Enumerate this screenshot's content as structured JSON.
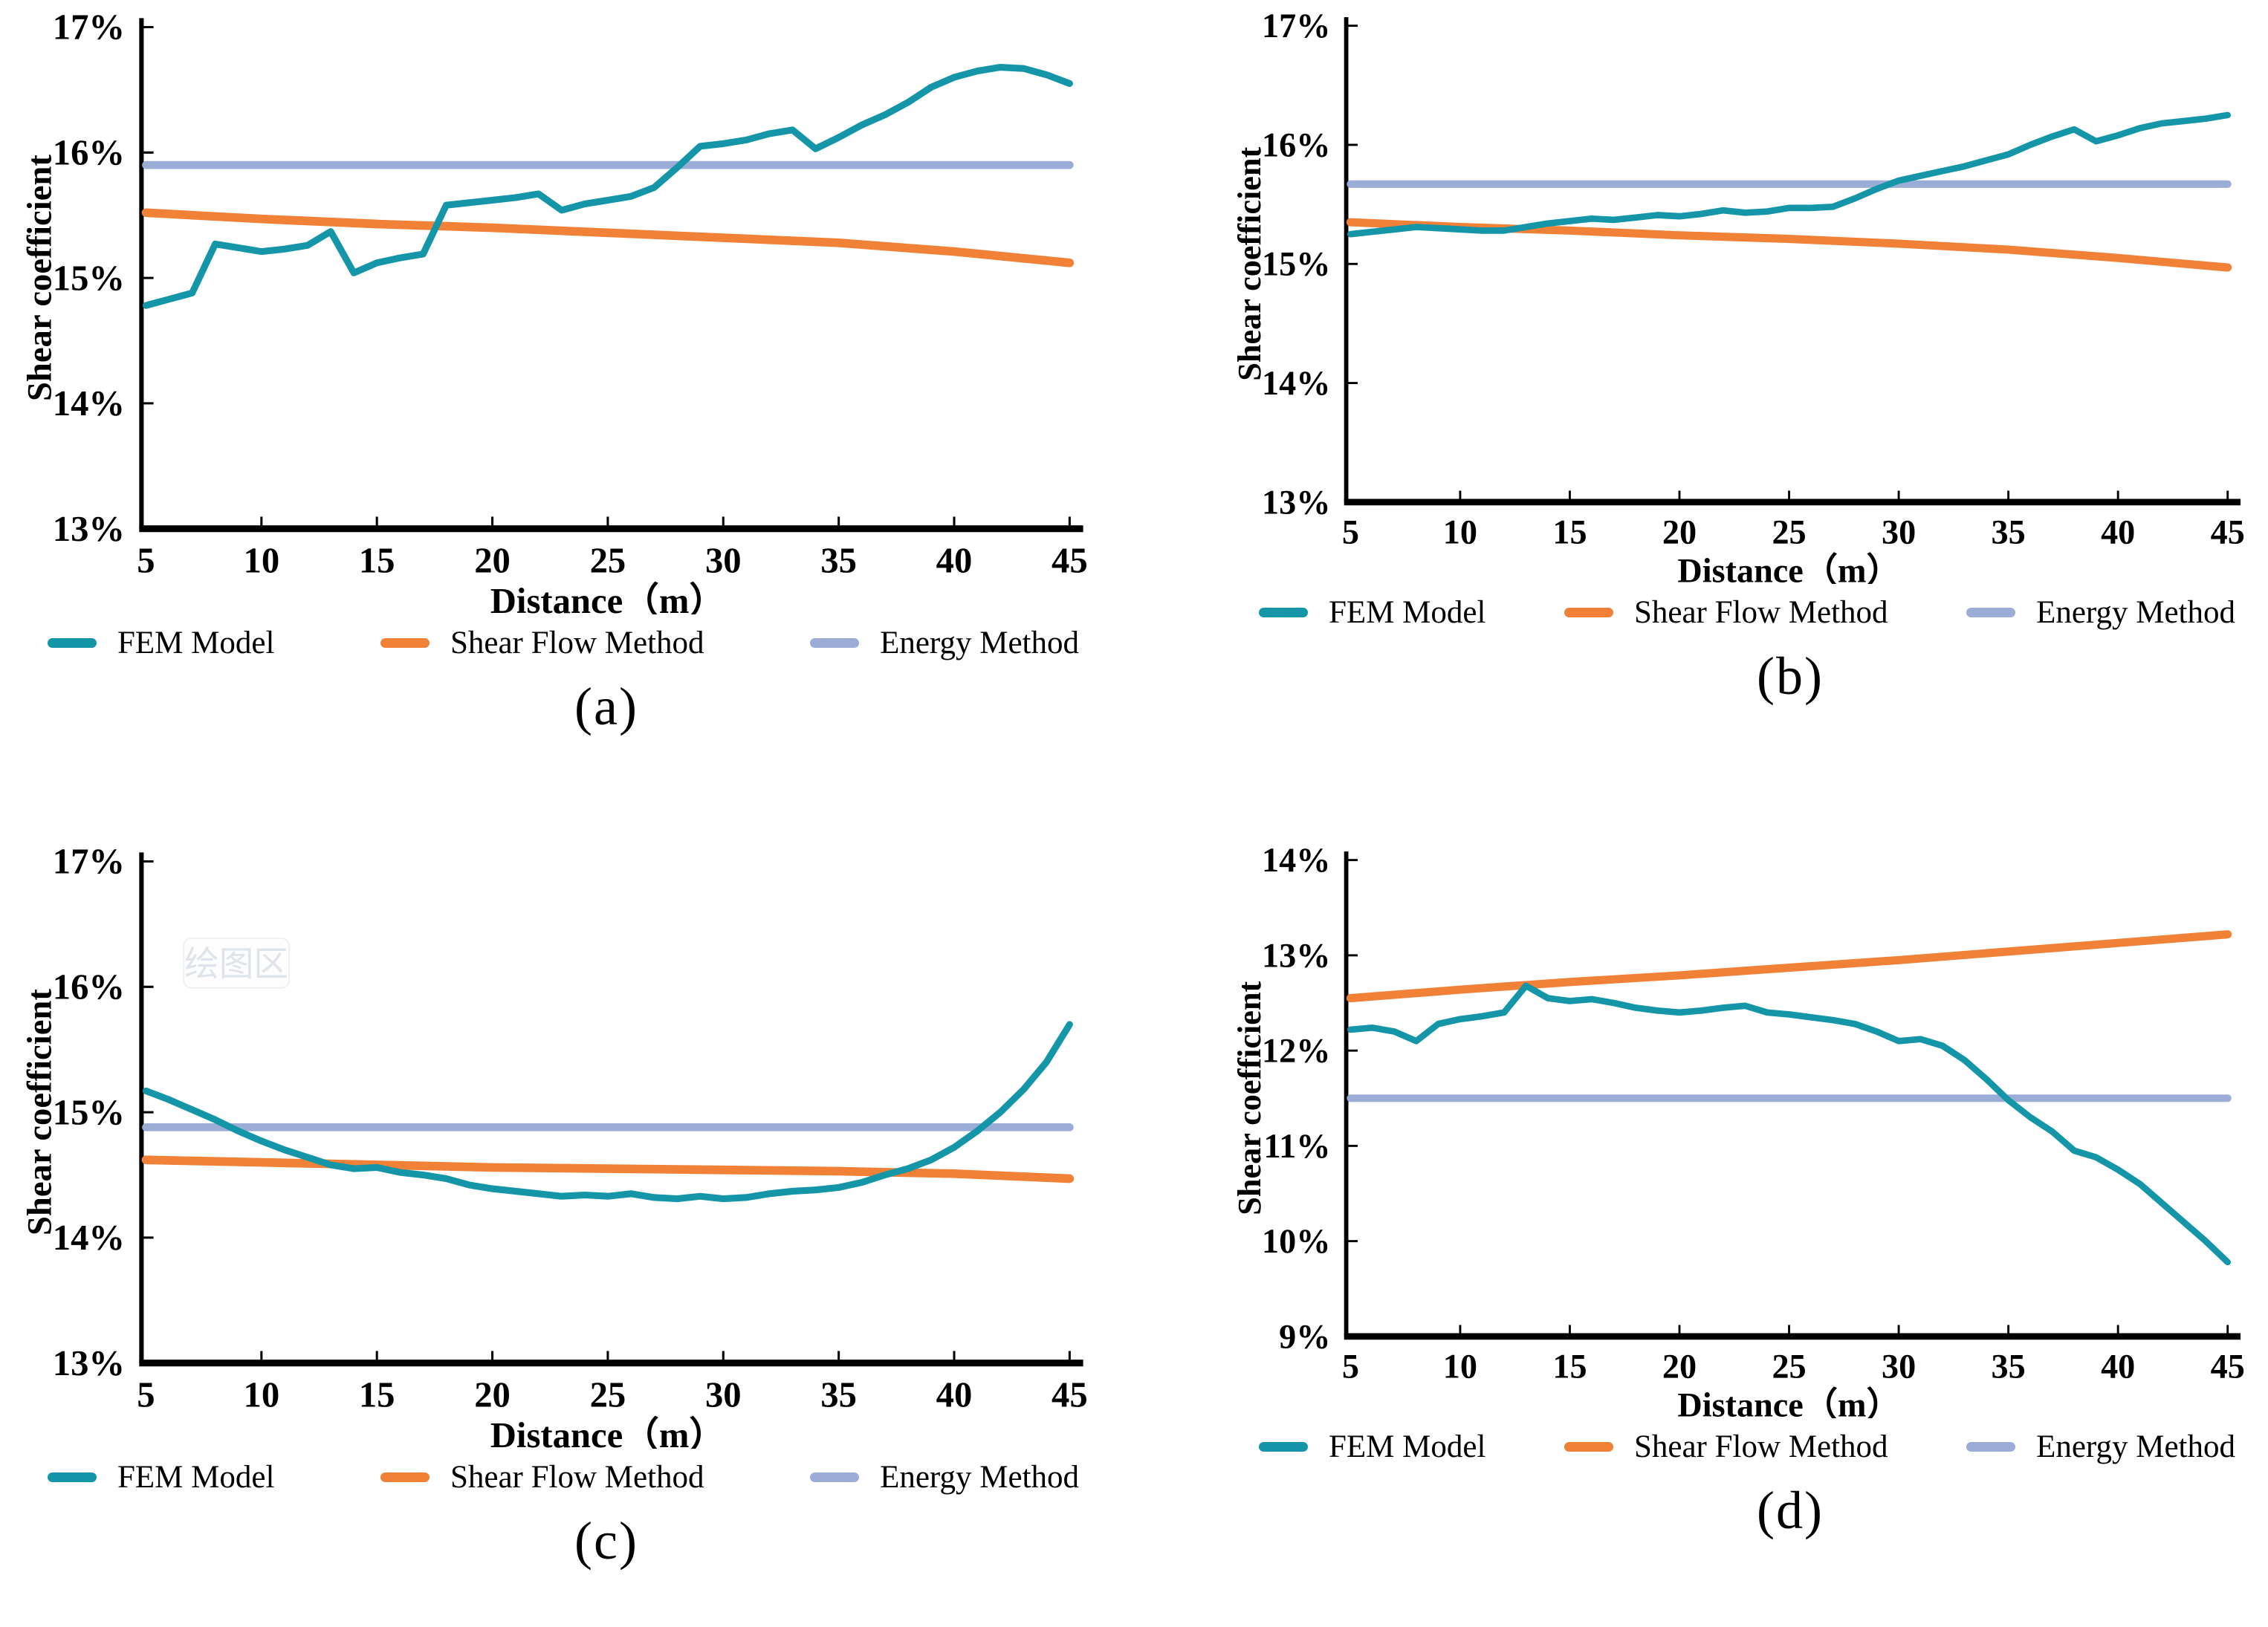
{
  "colors": {
    "fem": "#1496a8",
    "shear_flow": "#f08136",
    "energy": "#9badd6",
    "axis": "#000000",
    "watermark_text": "#dfe4ea",
    "watermark_box": "#fdfdfe",
    "watermark_border": "#eef1f4"
  },
  "chart_data": [
    {
      "type": "line",
      "caption": "(a)",
      "xlabel": "Distance（m）",
      "ylabel": "Shear coefficient",
      "ymin": 13,
      "ymax": 17,
      "yticks": [
        {
          "v": 17,
          "label": "17%"
        },
        {
          "v": 16,
          "label": "16%"
        },
        {
          "v": 15,
          "label": "15%"
        },
        {
          "v": 14,
          "label": "14%"
        },
        {
          "v": 13,
          "label": "13%"
        }
      ],
      "xticks": [
        5,
        10,
        15,
        20,
        25,
        30,
        35,
        40,
        45
      ],
      "x_range": [
        5,
        45
      ],
      "grid": false,
      "legend_position": "bottom",
      "series": [
        {
          "name": "Energy Method",
          "color_key": "energy",
          "x_start": 5,
          "x_step": 40,
          "values": [
            15.9,
            15.9
          ]
        },
        {
          "name": "Shear Flow Method",
          "color_key": "shear_flow",
          "x_start": 5,
          "x_step": 5,
          "values": [
            15.52,
            15.47,
            15.43,
            15.4,
            15.36,
            15.32,
            15.28,
            15.21,
            15.12
          ]
        },
        {
          "name": "FEM Model",
          "color_key": "fem",
          "x_start": 5,
          "x_step": 1,
          "values": [
            14.78,
            14.83,
            14.88,
            15.27,
            15.24,
            15.21,
            15.23,
            15.26,
            15.37,
            15.04,
            15.12,
            15.16,
            15.19,
            15.58,
            15.6,
            15.62,
            15.64,
            15.67,
            15.54,
            15.59,
            15.62,
            15.65,
            15.72,
            15.88,
            16.05,
            16.07,
            16.1,
            16.15,
            16.18,
            16.03,
            16.12,
            16.22,
            16.3,
            16.4,
            16.52,
            16.6,
            16.65,
            16.68,
            16.67,
            16.62,
            16.55
          ]
        }
      ],
      "legend_order": [
        "FEM Model",
        "Shear Flow Method",
        "Energy Method"
      ]
    },
    {
      "type": "line",
      "caption": "(b)",
      "xlabel": "Distance（m）",
      "ylabel": "Shear coefficient",
      "ymin": 13,
      "ymax": 17,
      "yticks": [
        {
          "v": 17,
          "label": "17%"
        },
        {
          "v": 16,
          "label": "16%"
        },
        {
          "v": 15,
          "label": "15%"
        },
        {
          "v": 14,
          "label": "14%"
        },
        {
          "v": 13,
          "label": "13%"
        }
      ],
      "xticks": [
        5,
        10,
        15,
        20,
        25,
        30,
        35,
        40,
        45
      ],
      "x_range": [
        5,
        45
      ],
      "grid": false,
      "legend_position": "bottom",
      "series": [
        {
          "name": "Energy Method",
          "color_key": "energy",
          "x_start": 5,
          "x_step": 40,
          "values": [
            15.67,
            15.67
          ]
        },
        {
          "name": "Shear Flow Method",
          "color_key": "shear_flow",
          "x_start": 5,
          "x_step": 5,
          "values": [
            15.35,
            15.31,
            15.28,
            15.24,
            15.21,
            15.17,
            15.12,
            15.05,
            14.97
          ]
        },
        {
          "name": "FEM Model",
          "color_key": "fem",
          "x_start": 5,
          "x_step": 1,
          "values": [
            15.25,
            15.27,
            15.29,
            15.31,
            15.3,
            15.29,
            15.28,
            15.28,
            15.31,
            15.34,
            15.36,
            15.38,
            15.37,
            15.39,
            15.41,
            15.4,
            15.42,
            15.45,
            15.43,
            15.44,
            15.47,
            15.47,
            15.48,
            15.55,
            15.63,
            15.7,
            15.74,
            15.78,
            15.82,
            15.87,
            15.92,
            16.0,
            16.07,
            16.13,
            16.03,
            16.08,
            16.14,
            16.18,
            16.2,
            16.22,
            16.25
          ]
        }
      ],
      "legend_order": [
        "FEM Model",
        "Shear Flow Method",
        "Energy Method"
      ]
    },
    {
      "type": "line",
      "caption": "(c)",
      "xlabel": "Distance（m）",
      "ylabel": "Shear coefficient",
      "ymin": 13,
      "ymax": 17,
      "watermark": "绘图区",
      "yticks": [
        {
          "v": 17,
          "label": "17%"
        },
        {
          "v": 16,
          "label": "16%"
        },
        {
          "v": 15,
          "label": "15%"
        },
        {
          "v": 14,
          "label": "14%"
        },
        {
          "v": 13,
          "label": "13%"
        }
      ],
      "xticks": [
        5,
        10,
        15,
        20,
        25,
        30,
        35,
        40,
        45
      ],
      "x_range": [
        5,
        45
      ],
      "grid": false,
      "legend_position": "bottom",
      "series": [
        {
          "name": "Energy Method",
          "color_key": "energy",
          "x_start": 5,
          "x_step": 40,
          "values": [
            14.88,
            14.88
          ]
        },
        {
          "name": "Shear Flow Method",
          "color_key": "shear_flow",
          "x_start": 5,
          "x_step": 5,
          "values": [
            14.62,
            14.6,
            14.58,
            14.56,
            14.55,
            14.54,
            14.53,
            14.51,
            14.47
          ]
        },
        {
          "name": "FEM Model",
          "color_key": "fem",
          "x_start": 5,
          "x_step": 1,
          "values": [
            15.17,
            15.1,
            15.02,
            14.94,
            14.85,
            14.77,
            14.7,
            14.64,
            14.58,
            14.55,
            14.56,
            14.52,
            14.5,
            14.47,
            14.42,
            14.39,
            14.37,
            14.35,
            14.33,
            14.34,
            14.33,
            14.35,
            14.32,
            14.31,
            14.33,
            14.31,
            14.32,
            14.35,
            14.37,
            14.38,
            14.4,
            14.44,
            14.5,
            14.55,
            14.62,
            14.72,
            14.85,
            15.0,
            15.18,
            15.4,
            15.7
          ]
        }
      ],
      "legend_order": [
        "FEM Model",
        "Shear Flow Method",
        "Energy Method"
      ]
    },
    {
      "type": "line",
      "caption": "(d)",
      "xlabel": "Distance（m）",
      "ylabel": "Shear coefficient",
      "ymin": 9,
      "ymax": 14,
      "yticks": [
        {
          "v": 14,
          "label": "14%"
        },
        {
          "v": 13,
          "label": "13%"
        },
        {
          "v": 12,
          "label": "12%"
        },
        {
          "v": 11,
          "label": "11%"
        },
        {
          "v": 10,
          "label": "10%"
        },
        {
          "v": 9,
          "label": "9%"
        }
      ],
      "xticks": [
        5,
        10,
        15,
        20,
        25,
        30,
        35,
        40,
        45
      ],
      "x_range": [
        5,
        45
      ],
      "grid": false,
      "legend_position": "bottom",
      "series": [
        {
          "name": "Energy Method",
          "color_key": "energy",
          "x_start": 5,
          "x_step": 40,
          "values": [
            11.5,
            11.5
          ]
        },
        {
          "name": "Shear Flow Method",
          "color_key": "shear_flow",
          "x_start": 5,
          "x_step": 5,
          "values": [
            12.55,
            12.64,
            12.72,
            12.79,
            12.87,
            12.95,
            13.04,
            13.13,
            13.22
          ]
        },
        {
          "name": "FEM Model",
          "color_key": "fem",
          "x_start": 5,
          "x_step": 1,
          "values": [
            12.22,
            12.24,
            12.2,
            12.1,
            12.28,
            12.33,
            12.36,
            12.4,
            12.68,
            12.55,
            12.52,
            12.54,
            12.5,
            12.45,
            12.42,
            12.4,
            12.42,
            12.45,
            12.47,
            12.4,
            12.38,
            12.35,
            12.32,
            12.28,
            12.2,
            12.1,
            12.12,
            12.05,
            11.9,
            11.7,
            11.48,
            11.3,
            11.15,
            10.95,
            10.88,
            10.75,
            10.6,
            10.4,
            10.2,
            10.0,
            9.78
          ]
        }
      ],
      "legend_order": [
        "FEM Model",
        "Shear Flow Method",
        "Energy Method"
      ]
    }
  ]
}
